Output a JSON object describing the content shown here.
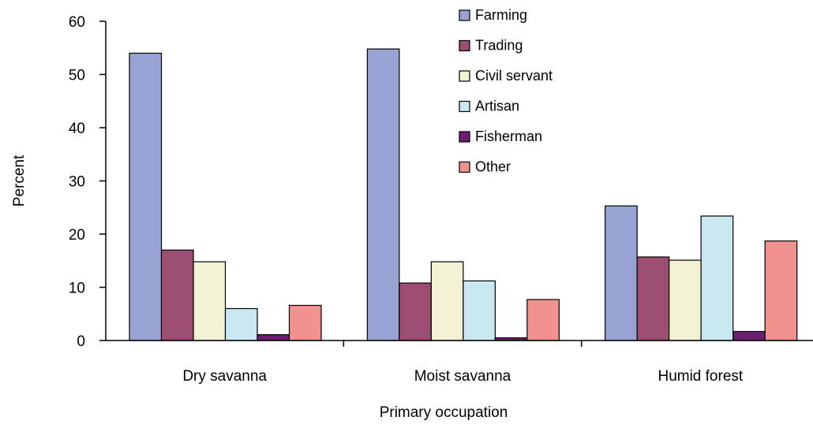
{
  "chart_data": {
    "type": "bar",
    "title": "",
    "xlabel": "Primary occupation",
    "ylabel": "Percent",
    "categories": [
      "Dry savanna",
      "Moist savanna",
      "Humid forest"
    ],
    "ylim": [
      0,
      60
    ],
    "yticks": [
      0,
      10,
      20,
      30,
      40,
      50,
      60
    ],
    "grid": false,
    "legend_position": "top-center",
    "series": [
      {
        "name": "Farming",
        "color": "#99a3d3",
        "values": [
          54,
          54.8,
          25.3
        ]
      },
      {
        "name": "Trading",
        "color": "#9b4d72",
        "values": [
          17,
          10.8,
          15.7
        ]
      },
      {
        "name": "Civil servant",
        "color": "#f4f2d5",
        "values": [
          14.8,
          14.8,
          15.1
        ]
      },
      {
        "name": "Artisan",
        "color": "#c9e8f2",
        "values": [
          6,
          11.2,
          23.4
        ]
      },
      {
        "name": "Fisherman",
        "color": "#6a1f70",
        "values": [
          1.1,
          0.5,
          1.7
        ]
      },
      {
        "name": "Other",
        "color": "#f0938e",
        "values": [
          6.6,
          7.7,
          18.7
        ]
      }
    ]
  }
}
